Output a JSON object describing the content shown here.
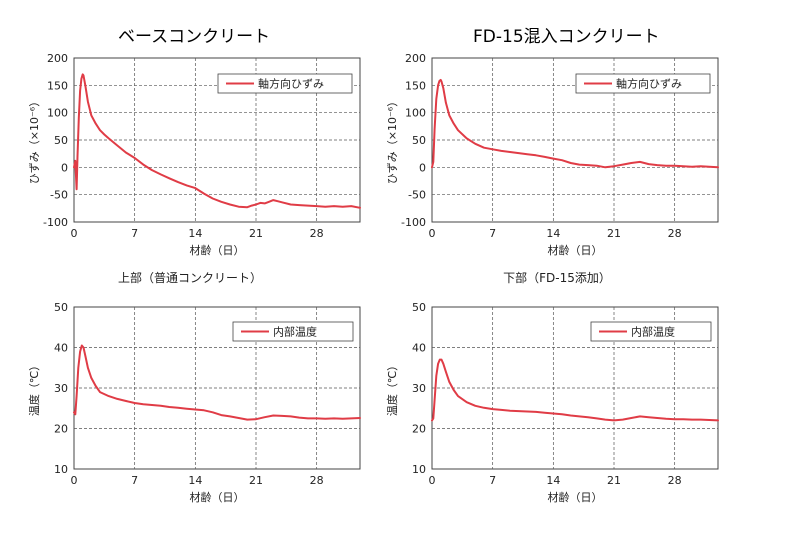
{
  "headings": {
    "left": "ベースコンクリート",
    "right": "FD-15混入コンクリート"
  },
  "colors": {
    "series": "#e03c46",
    "grid": "#555555",
    "axis": "#444444",
    "text": "#222222"
  },
  "chart_data": [
    {
      "id": "strain-base",
      "type": "line",
      "title": "",
      "xlabel": "材齢（日）",
      "ylabel": "ひずみ（×10⁻⁶）",
      "xlim": [
        0,
        33
      ],
      "ylim": [
        -100,
        200
      ],
      "xticks": [
        0,
        7,
        14,
        21,
        28
      ],
      "yticks": [
        -100,
        -50,
        0,
        50,
        100,
        150,
        200
      ],
      "legend": "top-right",
      "series": [
        {
          "name": "軸方向ひずみ",
          "x": [
            0,
            0.15,
            0.3,
            0.4,
            0.55,
            0.7,
            0.85,
            1.0,
            1.1,
            1.3,
            1.6,
            2.0,
            2.5,
            3,
            3.5,
            4,
            5,
            6,
            7,
            8,
            9,
            10,
            11,
            12,
            13,
            14,
            15,
            16,
            17,
            18,
            19,
            20,
            20.5,
            21,
            21.5,
            22,
            22.5,
            23,
            23.5,
            24,
            25,
            26,
            27,
            28,
            29,
            30,
            31,
            32,
            33
          ],
          "y": [
            0,
            12,
            -40,
            20,
            90,
            140,
            162,
            170,
            168,
            150,
            120,
            95,
            80,
            68,
            60,
            53,
            40,
            27,
            17,
            5,
            -5,
            -13,
            -20,
            -27,
            -33,
            -38,
            -48,
            -57,
            -63,
            -68,
            -72,
            -73,
            -70,
            -68,
            -65,
            -66,
            -63,
            -60,
            -62,
            -64,
            -68,
            -69,
            -70,
            -71,
            -72,
            -71,
            -72,
            -71,
            -74
          ]
        }
      ]
    },
    {
      "id": "strain-fd15",
      "type": "line",
      "title": "",
      "xlabel": "材齢（日）",
      "ylabel": "ひずみ（×10⁻⁶）",
      "xlim": [
        0,
        33
      ],
      "ylim": [
        -100,
        200
      ],
      "xticks": [
        0,
        7,
        14,
        21,
        28
      ],
      "yticks": [
        -100,
        -50,
        0,
        50,
        100,
        150,
        200
      ],
      "legend": "top-right",
      "series": [
        {
          "name": "軸方向ひずみ",
          "x": [
            0,
            0.15,
            0.3,
            0.5,
            0.7,
            0.85,
            1.0,
            1.1,
            1.3,
            1.6,
            2.0,
            2.5,
            3,
            4,
            5,
            6,
            7,
            8,
            9,
            10,
            11,
            12,
            13,
            14,
            15,
            16,
            17,
            18,
            19,
            20,
            21,
            22,
            23,
            24,
            25,
            26,
            27,
            28,
            29,
            30,
            31,
            32,
            33
          ],
          "y": [
            0,
            10,
            70,
            125,
            150,
            158,
            160,
            157,
            145,
            118,
            95,
            80,
            68,
            53,
            43,
            36,
            33,
            30,
            28,
            26,
            24,
            22,
            19,
            16,
            13,
            8,
            5,
            4,
            3,
            0,
            2,
            5,
            8,
            10,
            6,
            4,
            3,
            3,
            2,
            1,
            2,
            1,
            0
          ]
        }
      ]
    },
    {
      "id": "temp-upper",
      "type": "line",
      "title": "上部（普通コンクリート）",
      "xlabel": "材齢（日）",
      "ylabel": "温度（℃）",
      "xlim": [
        0,
        33
      ],
      "ylim": [
        10,
        50
      ],
      "xticks": [
        0,
        7,
        14,
        21,
        28
      ],
      "yticks": [
        10,
        20,
        30,
        40,
        50
      ],
      "legend": "top-right",
      "series": [
        {
          "name": "内部温度",
          "x": [
            0,
            0.15,
            0.3,
            0.5,
            0.7,
            0.9,
            1.1,
            1.3,
            1.6,
            2.0,
            2.5,
            3,
            4,
            5,
            6,
            7,
            8,
            9,
            10,
            11,
            12,
            13,
            14,
            15,
            16,
            17,
            18,
            19,
            20,
            21,
            22,
            23,
            24,
            25,
            26,
            27,
            28,
            29,
            30,
            31,
            32,
            33
          ],
          "y": [
            24,
            23.5,
            28,
            35,
            39,
            40.5,
            40,
            38,
            35,
            32.5,
            30.5,
            29,
            28,
            27.3,
            26.8,
            26.3,
            26,
            25.8,
            25.6,
            25.3,
            25.1,
            24.9,
            24.7,
            24.5,
            24,
            23.3,
            23,
            22.6,
            22.2,
            22.3,
            22.8,
            23.2,
            23.1,
            23,
            22.7,
            22.5,
            22.5,
            22.4,
            22.5,
            22.4,
            22.5,
            22.6
          ]
        }
      ]
    },
    {
      "id": "temp-lower",
      "type": "line",
      "title": "下部（FD-15添加）",
      "xlabel": "材齢（日）",
      "ylabel": "温度（℃）",
      "xlim": [
        0,
        33
      ],
      "ylim": [
        10,
        50
      ],
      "xticks": [
        0,
        7,
        14,
        21,
        28
      ],
      "yticks": [
        10,
        20,
        30,
        40,
        50
      ],
      "legend": "top-right",
      "series": [
        {
          "name": "内部温度",
          "x": [
            0,
            0.15,
            0.3,
            0.5,
            0.7,
            0.9,
            1.1,
            1.3,
            1.6,
            2.0,
            2.5,
            3,
            4,
            5,
            6,
            7,
            8,
            9,
            10,
            11,
            12,
            13,
            14,
            15,
            16,
            17,
            18,
            19,
            20,
            21,
            22,
            23,
            24,
            25,
            26,
            27,
            28,
            29,
            30,
            31,
            32,
            33
          ],
          "y": [
            22,
            22.5,
            27,
            33,
            36,
            37,
            37,
            36,
            34,
            31.5,
            29.5,
            28,
            26.5,
            25.6,
            25.1,
            24.8,
            24.6,
            24.4,
            24.3,
            24.2,
            24.1,
            23.9,
            23.7,
            23.5,
            23.2,
            23,
            22.8,
            22.5,
            22.2,
            22,
            22.2,
            22.6,
            23,
            22.8,
            22.6,
            22.4,
            22.3,
            22.3,
            22.2,
            22.2,
            22.1,
            22
          ]
        }
      ]
    }
  ]
}
